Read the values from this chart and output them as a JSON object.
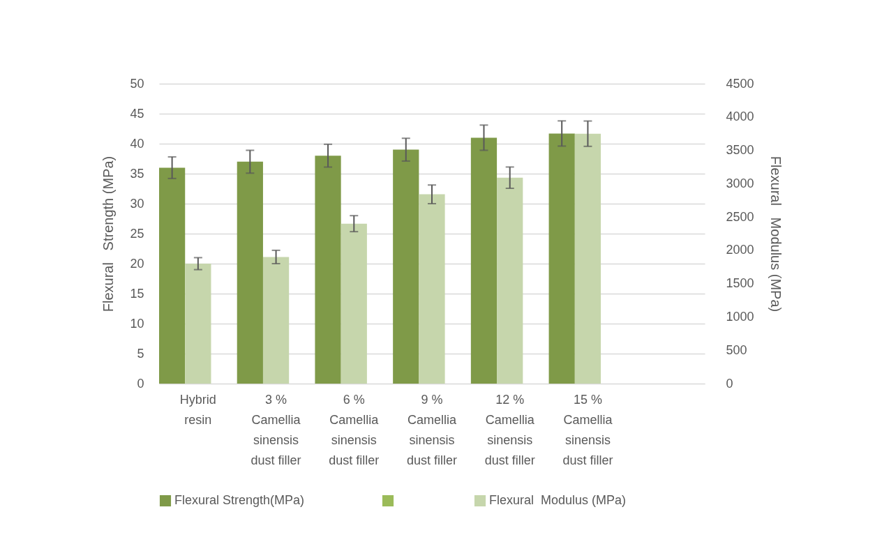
{
  "chart_data": {
    "type": "bar",
    "ylabel": "Flexural   Strength (MPa)",
    "y2label": "Flexural   Modulus (MPa)",
    "categories": [
      "Hybrid resin",
      "3 % Camellia sinensis dust filler",
      "6 % Camellia sinensis dust filler",
      "9 % Camellia sinensis dust filler",
      "12 % Camellia sinensis dust filler",
      "15 % Camellia sinensis dust filler",
      null
    ],
    "series": [
      {
        "name": "Flexural Strength(MPa)",
        "color": "#7f9a48",
        "values": [
          36,
          37,
          38,
          39,
          41,
          41.7,
          null
        ],
        "errors": [
          1.8,
          1.9,
          1.9,
          1.9,
          2.1,
          2.1,
          null
        ]
      },
      {
        "color": "#9bbb59",
        "values": [
          null,
          null,
          null,
          null,
          null,
          null,
          null
        ]
      },
      {
        "name": "Flexural  Modulus (MPa)",
        "color": "#c6d6ac",
        "axis": "y2",
        "values": [
          1800,
          1900,
          2400,
          2840,
          3090,
          3750,
          null
        ],
        "errors": [
          90,
          100,
          120,
          140,
          160,
          190,
          null
        ]
      }
    ],
    "ylim": [
      0,
      50
    ],
    "yticks": [
      0,
      5,
      10,
      15,
      20,
      25,
      30,
      35,
      40,
      45,
      50
    ],
    "y2lim": [
      0,
      4500
    ],
    "y2ticks": [
      0,
      500,
      1000,
      1500,
      2000,
      2500,
      3000,
      3500,
      4000,
      4500
    ],
    "grid": "y",
    "legend": "bottom"
  }
}
